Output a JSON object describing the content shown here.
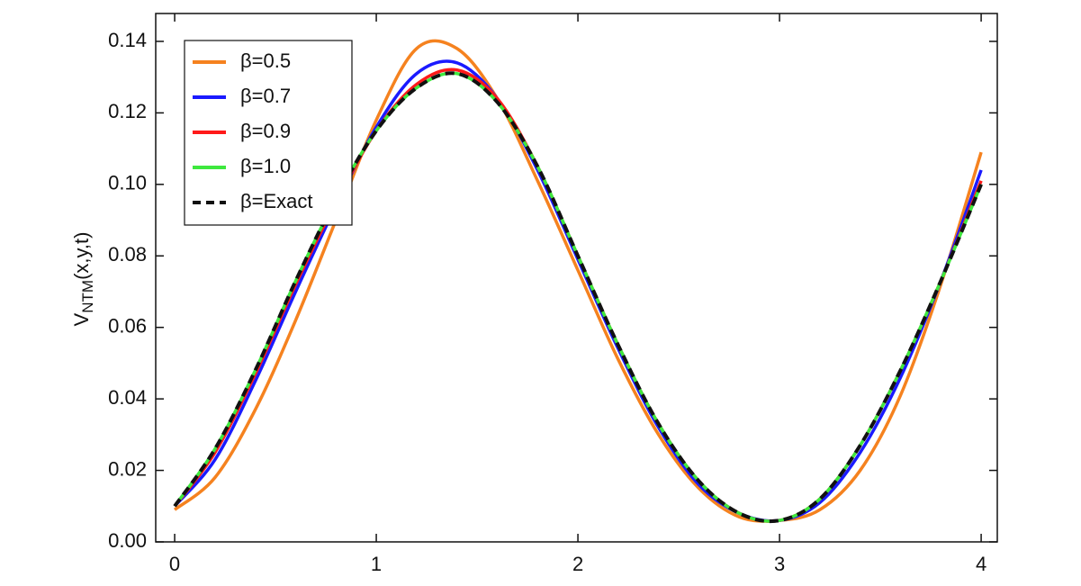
{
  "chart_data": {
    "type": "line",
    "y_label": {
      "main": "V",
      "sub": "NTM",
      "rest": "(x,y,t)"
    },
    "x": [
      0,
      0.2,
      0.4,
      0.6,
      0.8,
      1.0,
      1.2,
      1.4,
      1.6,
      1.8,
      2.0,
      2.2,
      2.4,
      2.6,
      2.8,
      3.0,
      3.2,
      3.4,
      3.6,
      3.8,
      4.0
    ],
    "series": [
      {
        "name": "β=0.5",
        "color": "#f5821f",
        "dash": false,
        "values": [
          0.009,
          0.018,
          0.037,
          0.062,
          0.09,
          0.118,
          0.138,
          0.138,
          0.124,
          0.101,
          0.076,
          0.051,
          0.03,
          0.015,
          0.007,
          0.006,
          0.009,
          0.02,
          0.041,
          0.072,
          0.109
        ]
      },
      {
        "name": "β=0.7",
        "color": "#1a1aff",
        "dash": false,
        "values": [
          0.01,
          0.023,
          0.045,
          0.07,
          0.094,
          0.116,
          0.131,
          0.134,
          0.124,
          0.104,
          0.079,
          0.054,
          0.032,
          0.016,
          0.008,
          0.006,
          0.011,
          0.025,
          0.046,
          0.073,
          0.104
        ]
      },
      {
        "name": "β=0.9",
        "color": "#ff1a1a",
        "dash": false,
        "values": [
          0.01,
          0.025,
          0.047,
          0.072,
          0.095,
          0.115,
          0.128,
          0.132,
          0.124,
          0.105,
          0.08,
          0.055,
          0.033,
          0.017,
          0.008,
          0.006,
          0.012,
          0.027,
          0.048,
          0.073,
          0.101
        ]
      },
      {
        "name": "β=1.0",
        "color": "#3ee83e",
        "dash": false,
        "values": [
          0.01,
          0.026,
          0.048,
          0.073,
          0.096,
          0.115,
          0.127,
          0.131,
          0.123,
          0.105,
          0.08,
          0.055,
          0.033,
          0.017,
          0.008,
          0.006,
          0.012,
          0.027,
          0.048,
          0.073,
          0.1
        ]
      },
      {
        "name": "β=Exact",
        "color": "#111111",
        "dash": true,
        "values": [
          0.01,
          0.026,
          0.048,
          0.073,
          0.096,
          0.115,
          0.127,
          0.131,
          0.123,
          0.105,
          0.08,
          0.055,
          0.033,
          0.017,
          0.008,
          0.006,
          0.012,
          0.027,
          0.048,
          0.073,
          0.1
        ]
      }
    ],
    "xlim": [
      -0.094,
      4.08
    ],
    "ylim": [
      0,
      0.1478
    ],
    "xticks": [
      0,
      1,
      2,
      3,
      4
    ],
    "yticks": [
      {
        "value": 0,
        "label": "0.00"
      },
      {
        "value": 0.02,
        "label": "0.02"
      },
      {
        "value": 0.04,
        "label": "0.04"
      },
      {
        "value": 0.06,
        "label": "0.06"
      },
      {
        "value": 0.08,
        "label": "0.08"
      },
      {
        "value": 0.1,
        "label": "0.10"
      },
      {
        "value": 0.12,
        "label": "0.12"
      },
      {
        "value": 0.14,
        "label": "0.14"
      }
    ],
    "legend": "upper left",
    "grid": false
  }
}
